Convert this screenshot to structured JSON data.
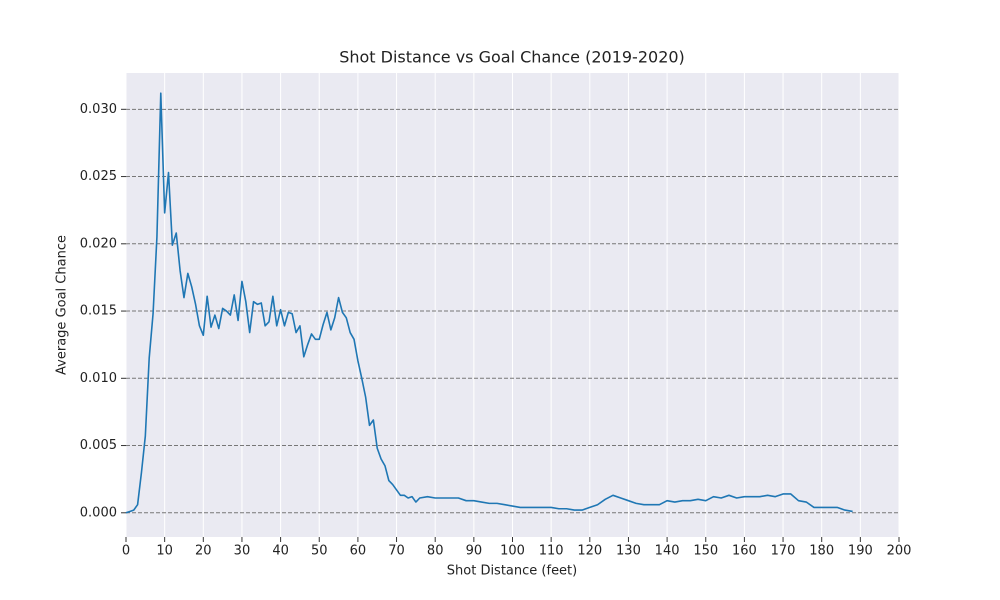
{
  "chart_data": {
    "type": "line",
    "title": "Shot Distance vs Goal Chance (2019-2020)",
    "xlabel": "Shot Distance (feet)",
    "ylabel": "Average Goal Chance",
    "x": [
      0,
      1,
      2,
      3,
      4,
      5,
      6,
      7,
      8,
      9,
      10,
      11,
      12,
      13,
      14,
      15,
      16,
      17,
      18,
      19,
      20,
      21,
      22,
      23,
      24,
      25,
      26,
      27,
      28,
      29,
      30,
      31,
      32,
      33,
      34,
      35,
      36,
      37,
      38,
      39,
      40,
      41,
      42,
      43,
      44,
      45,
      46,
      47,
      48,
      49,
      50,
      51,
      52,
      53,
      54,
      55,
      56,
      57,
      58,
      59,
      60,
      61,
      62,
      63,
      64,
      65,
      66,
      67,
      68,
      69,
      70,
      71,
      72,
      73,
      74,
      75,
      76,
      78,
      80,
      82,
      84,
      86,
      88,
      90,
      92,
      94,
      96,
      98,
      100,
      102,
      104,
      106,
      108,
      110,
      112,
      114,
      116,
      118,
      120,
      122,
      124,
      126,
      128,
      130,
      132,
      134,
      136,
      138,
      140,
      142,
      144,
      146,
      148,
      150,
      152,
      154,
      156,
      158,
      160,
      162,
      164,
      166,
      168,
      170,
      172,
      174,
      176,
      178,
      180,
      182,
      184,
      186,
      188
    ],
    "values": [
      0.0,
      0.0001,
      0.0002,
      0.0006,
      0.003,
      0.0057,
      0.0115,
      0.0148,
      0.0205,
      0.0312,
      0.0223,
      0.0253,
      0.0199,
      0.0208,
      0.018,
      0.016,
      0.0178,
      0.0168,
      0.0155,
      0.0139,
      0.0132,
      0.0161,
      0.0138,
      0.0147,
      0.0137,
      0.0152,
      0.015,
      0.0147,
      0.0162,
      0.0143,
      0.0172,
      0.0157,
      0.0134,
      0.0157,
      0.0155,
      0.0156,
      0.0139,
      0.0142,
      0.0161,
      0.0139,
      0.0151,
      0.0139,
      0.0149,
      0.0148,
      0.0134,
      0.0139,
      0.0116,
      0.0125,
      0.0133,
      0.0129,
      0.0129,
      0.014,
      0.0149,
      0.0136,
      0.0145,
      0.016,
      0.0149,
      0.0145,
      0.0134,
      0.0129,
      0.0113,
      0.01,
      0.0086,
      0.0065,
      0.0069,
      0.0048,
      0.004,
      0.0035,
      0.0024,
      0.0021,
      0.0017,
      0.0013,
      0.0013,
      0.0011,
      0.0012,
      0.0008,
      0.0011,
      0.0012,
      0.0011,
      0.0011,
      0.0011,
      0.0011,
      0.0009,
      0.0009,
      0.0008,
      0.0007,
      0.0007,
      0.0006,
      0.0005,
      0.0004,
      0.0004,
      0.0004,
      0.0004,
      0.0004,
      0.0003,
      0.0003,
      0.0002,
      0.0002,
      0.0004,
      0.0006,
      0.001,
      0.0013,
      0.0011,
      0.0009,
      0.0007,
      0.0006,
      0.0006,
      0.0006,
      0.0009,
      0.0008,
      0.0009,
      0.0009,
      0.001,
      0.0009,
      0.0012,
      0.0011,
      0.0013,
      0.0011,
      0.0012,
      0.0012,
      0.0012,
      0.0013,
      0.0012,
      0.0014,
      0.0014,
      0.0009,
      0.0008,
      0.0004,
      0.0004,
      0.0004,
      0.0004,
      0.0002,
      0.0001
    ],
    "color": "#1f77b4",
    "xlim": [
      0,
      200
    ],
    "xticks": [
      0,
      10,
      20,
      30,
      40,
      50,
      60,
      70,
      80,
      90,
      100,
      110,
      120,
      130,
      140,
      150,
      160,
      170,
      180,
      190,
      200
    ],
    "ylim": [
      -0.0018,
      0.0327
    ],
    "yticks": [
      {
        "value": 0,
        "label": "0.000"
      },
      {
        "value": 0.005,
        "label": "0.005"
      },
      {
        "value": 0.01,
        "label": "0.010"
      },
      {
        "value": 0.015,
        "label": "0.015"
      },
      {
        "value": 0.02,
        "label": "0.020"
      },
      {
        "value": 0.025,
        "label": "0.025"
      },
      {
        "value": 0.03,
        "label": "0.030"
      }
    ],
    "grid": true
  }
}
